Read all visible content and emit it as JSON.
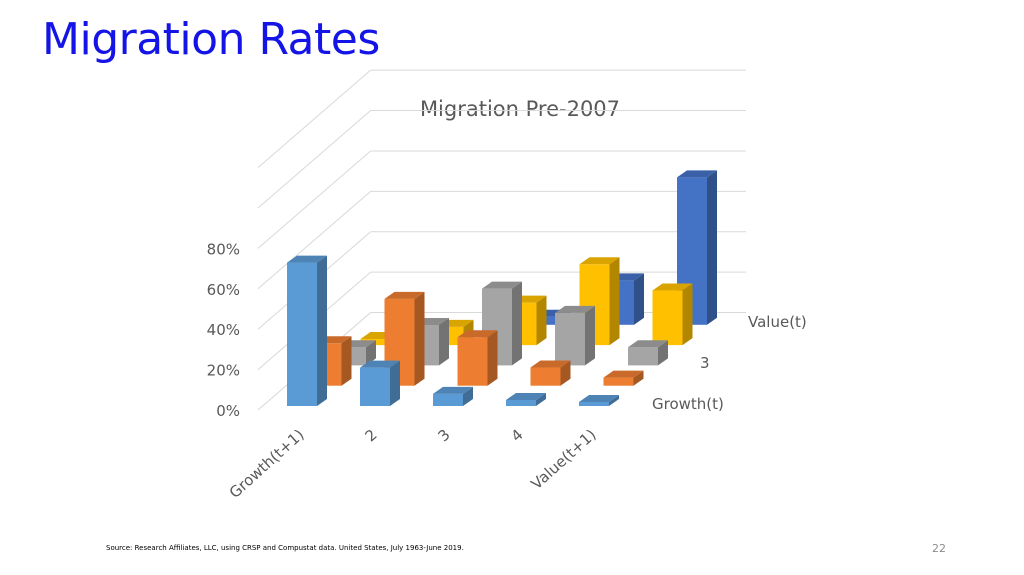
{
  "slide": {
    "title": "Migration Rates",
    "source": "Source: Research Affiliates, LLC, using CRSP and Compustat data. United States, July 1963-June 2019.",
    "page_number": "22"
  },
  "chart_data": {
    "type": "bar",
    "subtype": "3d-column",
    "title": "Migration Pre-2007",
    "categories": [
      "Growth(t+1)",
      "2",
      "3",
      "4",
      "Value(t+1)"
    ],
    "series": [
      {
        "name": "Growth(t)",
        "color": "#5b9bd5",
        "values": [
          71,
          19,
          6,
          3,
          2
        ]
      },
      {
        "name": "",
        "color": "#ed7d31",
        "values": [
          21,
          43,
          24,
          9,
          4
        ]
      },
      {
        "name": "3",
        "color": "#a5a5a5",
        "values": [
          9,
          20,
          38,
          26,
          9
        ]
      },
      {
        "name": "",
        "color": "#ffc000",
        "values": [
          3,
          9,
          21,
          40,
          27
        ]
      },
      {
        "name": "Value(t)",
        "color": "#4472c4",
        "values": [
          0,
          0,
          4,
          22,
          73
        ]
      }
    ],
    "y_ticks": [
      "0%",
      "20%",
      "40%",
      "60%",
      "80%"
    ],
    "ylim": [
      0,
      100
    ],
    "grid": true
  }
}
